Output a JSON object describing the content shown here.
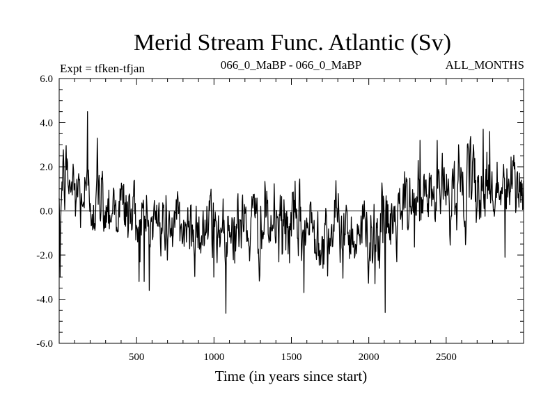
{
  "chart_data": {
    "type": "line",
    "title": "Merid Stream Func. Atlantic (Sv)",
    "subtitle_left": "Expt = tfken-tfjan",
    "subtitle_center": "066_0_MaBP - 066_0_MaBP",
    "subtitle_right": "ALL_MONTHS",
    "xlabel": "Time (in years since start)",
    "ylabel": "",
    "xlim": [
      0,
      3000
    ],
    "ylim": [
      -6.0,
      6.0
    ],
    "x_ticks": [
      500,
      1000,
      1500,
      2000,
      2500
    ],
    "x_tick_labels": [
      "500",
      "1000",
      "1500",
      "2000",
      "2500"
    ],
    "y_ticks": [
      -6.0,
      -4.0,
      -2.0,
      0.0,
      2.0,
      4.0,
      6.0
    ],
    "y_tick_labels": [
      "-6.0",
      "-4.0",
      "-2.0",
      "0.0",
      "2.0",
      "4.0",
      "6.0"
    ],
    "zero_line": true,
    "line_color": "#000000",
    "series": [
      {
        "values_note": "annual time series, approximately 3000 points, reconstructed from visual envelope",
        "anchor_x": [
          0,
          20,
          50,
          100,
          150,
          200,
          300,
          400,
          500,
          600,
          700,
          800,
          900,
          1000,
          1200,
          1400,
          1600,
          1800,
          2000,
          2100,
          2150,
          2200,
          2300,
          2400,
          2500,
          2600,
          2700,
          2800,
          2900,
          3000
        ],
        "anchor_y": [
          -1.5,
          1.5,
          1.4,
          0.9,
          0.7,
          0.6,
          0.4,
          0.2,
          -0.3,
          -0.5,
          -0.7,
          -0.7,
          -0.8,
          -0.7,
          -0.7,
          -0.7,
          -0.8,
          -0.9,
          -0.9,
          -0.8,
          -0.6,
          -0.2,
          0.3,
          0.7,
          0.9,
          1.0,
          1.1,
          1.0,
          1.0,
          1.1
        ],
        "spikes": [
          {
            "x": 7,
            "y": -3.0
          },
          {
            "x": 183,
            "y": 4.5
          },
          {
            "x": 245,
            "y": 3.3
          },
          {
            "x": 515,
            "y": -3.2
          },
          {
            "x": 550,
            "y": -3.2
          },
          {
            "x": 1000,
            "y": -3.0
          },
          {
            "x": 1580,
            "y": -3.7
          },
          {
            "x": 2040,
            "y": -3.3
          },
          {
            "x": 2105,
            "y": -4.6
          },
          {
            "x": 2330,
            "y": 3.2
          },
          {
            "x": 2580,
            "y": 3.0
          },
          {
            "x": 2740,
            "y": 3.7
          },
          {
            "x": 2780,
            "y": 3.6
          },
          {
            "x": 2880,
            "y": -2.1
          }
        ]
      }
    ]
  }
}
